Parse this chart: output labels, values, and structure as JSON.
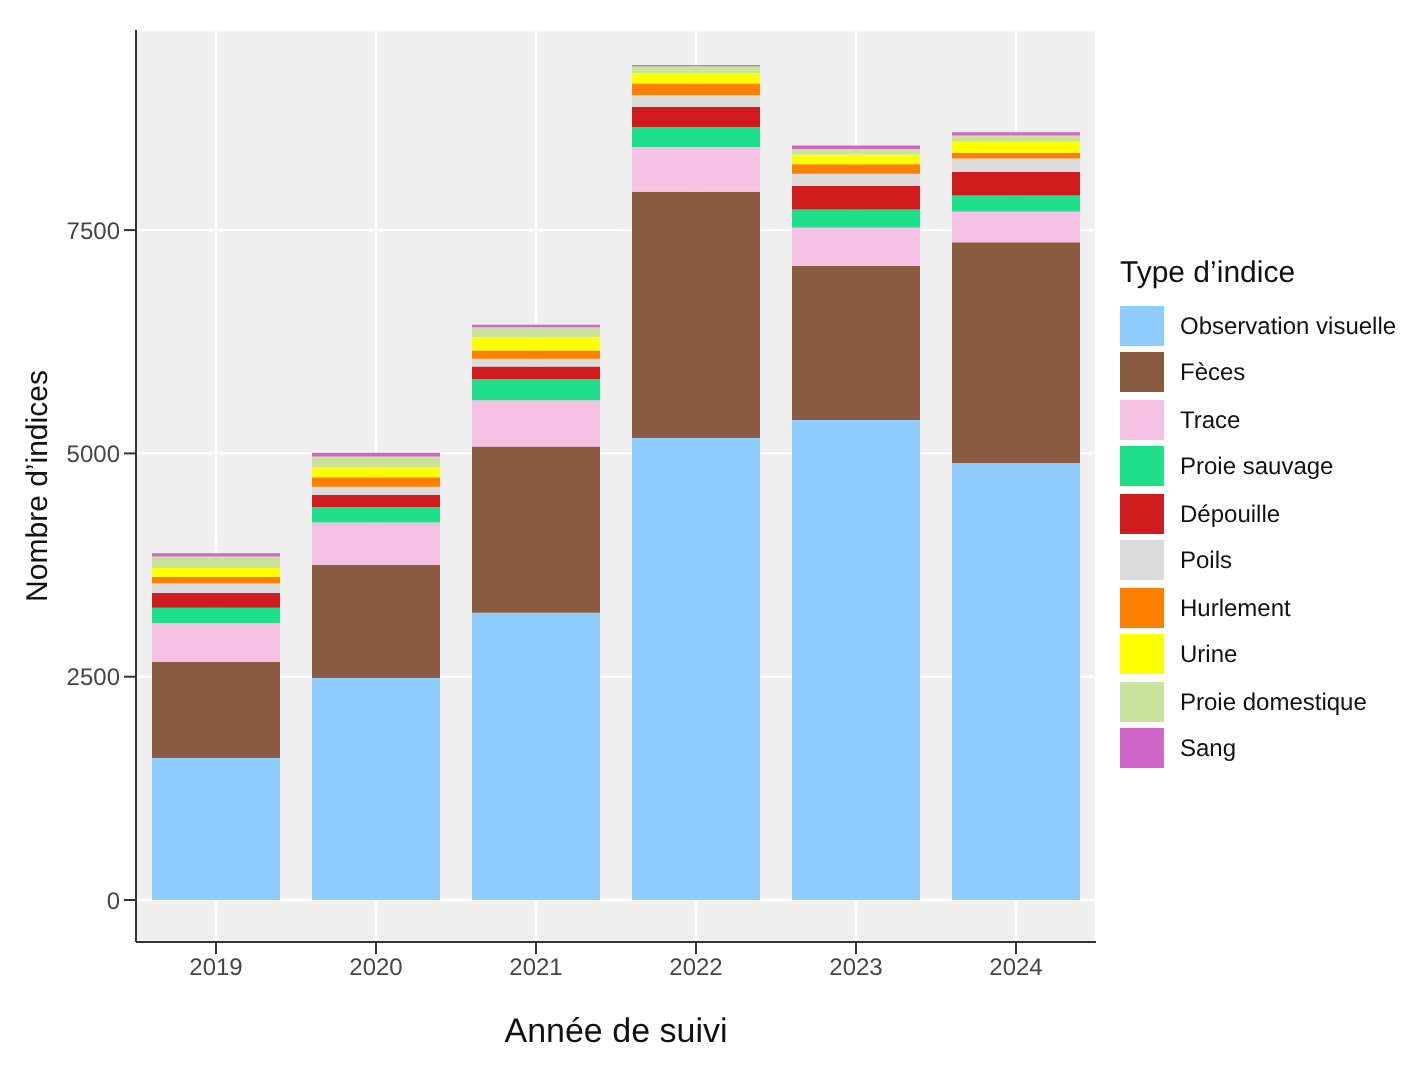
{
  "chart_data": {
    "type": "bar",
    "stacked": true,
    "xlabel": "Année de suivi",
    "ylabel": "Nombre d’indices",
    "legend_title": "Type d’indice",
    "legend": "right",
    "grid": true,
    "categories": [
      "2019",
      "2020",
      "2021",
      "2022",
      "2023",
      "2024"
    ],
    "ylim": [
      -470,
      9740
    ],
    "yticks": [
      0,
      2500,
      5000,
      7500
    ],
    "series": [
      {
        "name": "Observation visuelle",
        "color": "#8ecdfd",
        "values": [
          1590,
          2486,
          3217,
          5172,
          5373,
          4893
        ]
      },
      {
        "name": "Fèces",
        "color": "#8a5a41",
        "values": [
          1075,
          1268,
          1861,
          2758,
          1725,
          2471
        ]
      },
      {
        "name": "Trace",
        "color": "#f5c1e3",
        "values": [
          435,
          473,
          516,
          501,
          430,
          344
        ]
      },
      {
        "name": "Proie sauvage",
        "color": "#1fdf8a",
        "values": [
          173,
          172,
          236,
          223,
          202,
          179
        ]
      },
      {
        "name": "Dépouille",
        "color": "#d01c1f",
        "values": [
          165,
          135,
          144,
          228,
          264,
          264
        ]
      },
      {
        "name": "Poils",
        "color": "#dcdcdc",
        "values": [
          108,
          93,
          86,
          129,
          136,
          151
        ]
      },
      {
        "name": "Hurlement",
        "color": "#ff7f00",
        "values": [
          71,
          107,
          93,
          129,
          107,
          64
        ]
      },
      {
        "name": "Urine",
        "color": "#ffff00",
        "values": [
          101,
          108,
          144,
          115,
          108,
          122
        ]
      },
      {
        "name": "Proie domestique",
        "color": "#c9e39d",
        "values": [
          129,
          122,
          114,
          78,
          64,
          72
        ]
      },
      {
        "name": "Sang",
        "color": "#d066c8",
        "values": [
          36,
          43,
          29,
          15,
          37,
          36
        ]
      }
    ]
  }
}
